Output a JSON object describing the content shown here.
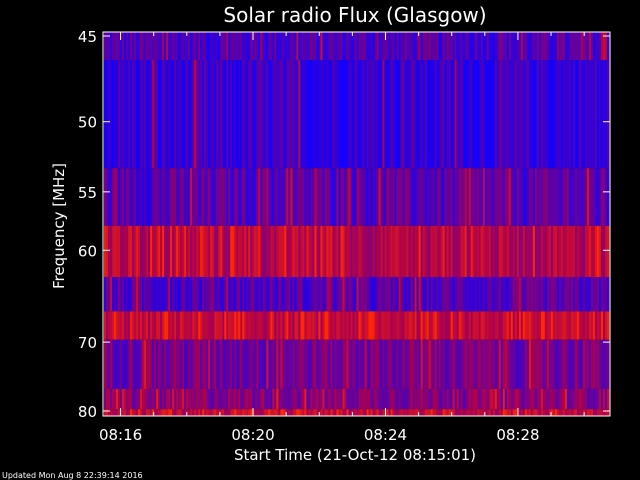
{
  "chart_data": {
    "type": "heatmap",
    "title": "Solar radio Flux (Glasgow)",
    "ylabel": "Frequency [MHz]",
    "xlabel": "Start Time (21-Oct-12 08:15:01)",
    "x_ticks": [
      "08:16",
      "08:20",
      "08:24",
      "08:28"
    ],
    "y_ticks": [
      "45",
      "50",
      "55",
      "60",
      "70",
      "80"
    ],
    "grid": false,
    "bands": [
      {
        "from_mhz": 45.0,
        "to_mhz": 46.3,
        "level": 0.18
      },
      {
        "from_mhz": 46.3,
        "to_mhz": 53.2,
        "level": 0.1
      },
      {
        "from_mhz": 53.2,
        "to_mhz": 57.8,
        "level": 0.22
      },
      {
        "from_mhz": 57.8,
        "to_mhz": 62.6,
        "level": 0.55
      },
      {
        "from_mhz": 62.6,
        "to_mhz": 66.3,
        "level": 0.2
      },
      {
        "from_mhz": 66.3,
        "to_mhz": 69.7,
        "level": 0.62
      },
      {
        "from_mhz": 69.7,
        "to_mhz": 76.5,
        "level": 0.32
      },
      {
        "from_mhz": 76.5,
        "to_mhz": 79.7,
        "level": 0.38
      },
      {
        "from_mhz": 79.7,
        "to_mhz": 80.3,
        "level": 0.6
      }
    ]
  },
  "footer": {
    "updated": "Updated Mon Aug  8 22:39:14 2016"
  }
}
